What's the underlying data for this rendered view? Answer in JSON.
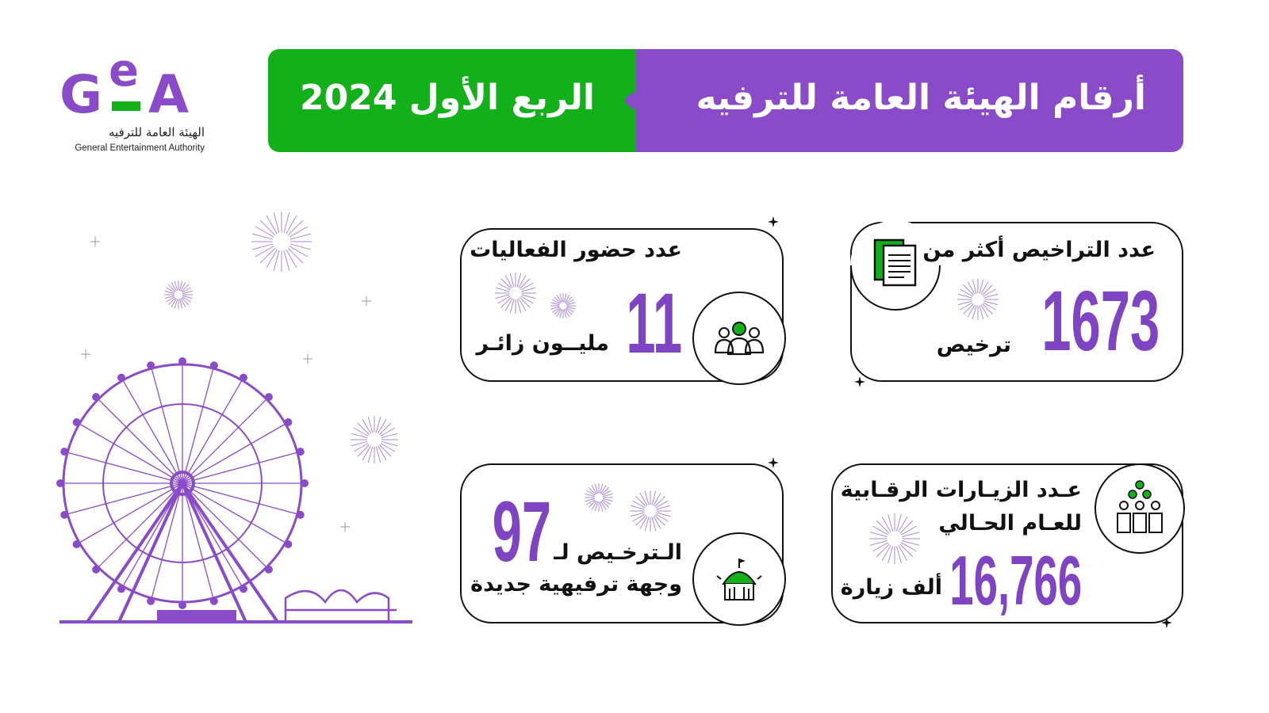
{
  "logo": {
    "mark": "GeA",
    "arabic_name": "الهيئة العامة للترفيه",
    "english_name": "General Entertainment Authority"
  },
  "header": {
    "title": "أرقام الهيئة العامة للترفيه",
    "period": "الربع الأول 2024"
  },
  "colors": {
    "purple": "#8a4bc9",
    "green": "#14b01c",
    "number": "#7e44c2"
  },
  "stats": {
    "licenses": {
      "label": "عدد التراخيص أكثر من",
      "value": "1673",
      "unit": "ترخيص",
      "icon": "documents-icon"
    },
    "attendance": {
      "label": "عدد حضور الفعاليات",
      "value": "11",
      "unit": "مليــون زائـر",
      "icon": "people-group-icon"
    },
    "inspections": {
      "label_line1": "عـدد الزيـارات الرقـابية",
      "label_line2": "للعـام الحـالي",
      "value": "16,766",
      "unit": "ألف زيارة",
      "icon": "inspectors-icon"
    },
    "destinations": {
      "value": "97",
      "label_line1": "الـترخـيص لـ",
      "label_line2": "وجهة ترفيهية جديدة",
      "icon": "tent-icon"
    }
  }
}
